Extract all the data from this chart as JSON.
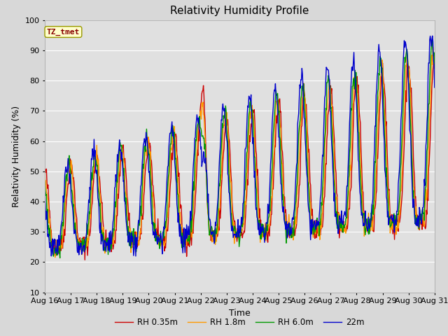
{
  "title": "Relativity Humidity Profile",
  "xlabel": "Time",
  "ylabel": "Relativity Humidity (%)",
  "ylim": [
    10,
    100
  ],
  "xlim": [
    0,
    360
  ],
  "fig_bg": "#d8d8d8",
  "plot_bg": "#e0e0e0",
  "grid_color": "#ffffff",
  "tick_labels": [
    "Aug 16",
    "Aug 17",
    "Aug 18",
    "Aug 19",
    "Aug 20",
    "Aug 21",
    "Aug 22",
    "Aug 23",
    "Aug 24",
    "Aug 25",
    "Aug 26",
    "Aug 27",
    "Aug 28",
    "Aug 29",
    "Aug 30",
    "Aug 31"
  ],
  "tick_positions": [
    0,
    24,
    48,
    72,
    96,
    120,
    144,
    168,
    192,
    216,
    240,
    264,
    288,
    312,
    336,
    360
  ],
  "legend": [
    "RH 0.35m",
    "RH 1.8m",
    "RH 6.0m",
    "22m"
  ],
  "line_colors": [
    "#cc0000",
    "#ff9900",
    "#009900",
    "#0000cc"
  ],
  "annotation_text": "TZ_tmet",
  "annotation_bg": "#ffffcc",
  "annotation_border": "#999900",
  "annotation_text_color": "#880000"
}
